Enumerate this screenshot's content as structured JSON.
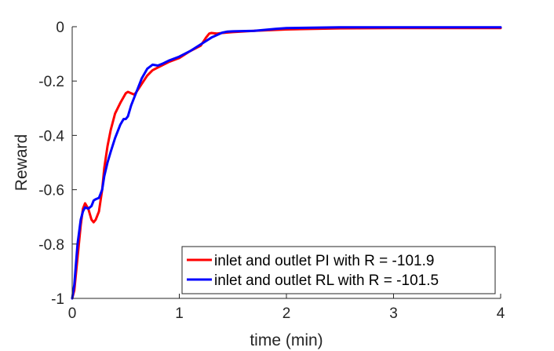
{
  "chart_data": {
    "type": "line",
    "title": "",
    "xlabel": "time (min)",
    "ylabel": "Reward",
    "xlim": [
      0,
      4
    ],
    "ylim": [
      -1,
      0
    ],
    "xticks": [
      0,
      1,
      2,
      3,
      4
    ],
    "xtick_labels": [
      "0",
      "1",
      "2",
      "3",
      "4"
    ],
    "yticks": [
      0,
      -0.2,
      -0.4,
      -0.6,
      -0.8,
      -1
    ],
    "ytick_labels": [
      "0",
      "-0.2",
      "-0.4",
      "-0.6",
      "-0.8",
      "-1"
    ],
    "grid": false,
    "legend_position": "bottom-right",
    "series": [
      {
        "name": "inlet and outlet PI with R = -101.9",
        "color": "#ff0000",
        "x": [
          0,
          0.02,
          0.05,
          0.08,
          0.1,
          0.12,
          0.15,
          0.18,
          0.2,
          0.22,
          0.25,
          0.28,
          0.3,
          0.33,
          0.36,
          0.4,
          0.45,
          0.5,
          0.52,
          0.55,
          0.58,
          0.6,
          0.65,
          0.7,
          0.75,
          0.8,
          0.9,
          1.0,
          1.1,
          1.2,
          1.25,
          1.28,
          1.3,
          1.35,
          1.4,
          1.5,
          1.7,
          2.0,
          2.5,
          3.0,
          3.5,
          4.0
        ],
        "y": [
          -1,
          -0.97,
          -0.85,
          -0.73,
          -0.67,
          -0.65,
          -0.67,
          -0.71,
          -0.72,
          -0.71,
          -0.68,
          -0.6,
          -0.52,
          -0.44,
          -0.38,
          -0.32,
          -0.28,
          -0.245,
          -0.24,
          -0.245,
          -0.25,
          -0.24,
          -0.21,
          -0.18,
          -0.16,
          -0.15,
          -0.13,
          -0.115,
          -0.09,
          -0.07,
          -0.04,
          -0.025,
          -0.023,
          -0.025,
          -0.023,
          -0.02,
          -0.015,
          -0.01,
          -0.006,
          -0.005,
          -0.005,
          -0.005
        ]
      },
      {
        "name": "inlet and outlet RL with R = -101.5",
        "color": "#0000ff",
        "x": [
          0,
          0.02,
          0.05,
          0.08,
          0.1,
          0.12,
          0.15,
          0.18,
          0.2,
          0.22,
          0.25,
          0.28,
          0.3,
          0.33,
          0.36,
          0.4,
          0.45,
          0.48,
          0.5,
          0.52,
          0.55,
          0.6,
          0.65,
          0.7,
          0.75,
          0.8,
          0.85,
          0.9,
          1.0,
          1.1,
          1.2,
          1.3,
          1.4,
          1.45,
          1.5,
          1.7,
          1.9,
          2.0,
          2.5,
          3.0,
          3.5,
          4.0
        ],
        "y": [
          -1,
          -0.95,
          -0.8,
          -0.71,
          -0.68,
          -0.665,
          -0.67,
          -0.66,
          -0.64,
          -0.635,
          -0.63,
          -0.6,
          -0.55,
          -0.5,
          -0.46,
          -0.41,
          -0.36,
          -0.34,
          -0.34,
          -0.33,
          -0.29,
          -0.24,
          -0.19,
          -0.155,
          -0.14,
          -0.143,
          -0.135,
          -0.125,
          -0.11,
          -0.09,
          -0.065,
          -0.04,
          -0.022,
          -0.018,
          -0.017,
          -0.015,
          -0.008,
          -0.005,
          -0.002,
          -0.002,
          -0.002,
          -0.002
        ]
      }
    ]
  }
}
